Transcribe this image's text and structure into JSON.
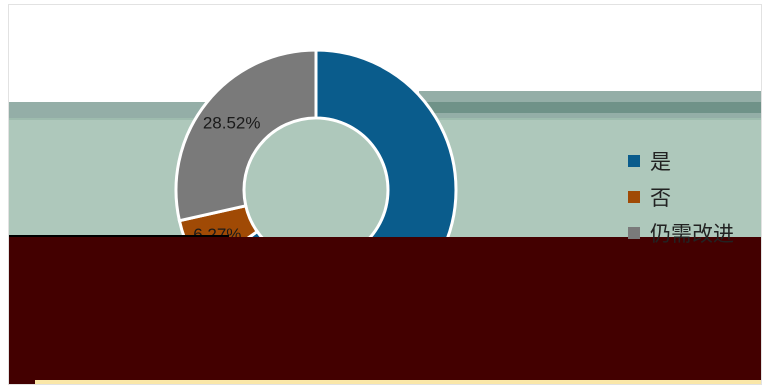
{
  "chart_data": {
    "type": "pie",
    "donut": true,
    "title": "",
    "labels": [
      "是",
      "否",
      "仍需改进"
    ],
    "values": [
      65.21,
      6.27,
      28.52
    ],
    "data_labels": [
      "",
      "6.27%",
      "28.52%"
    ],
    "colors": [
      "#0a5c8c",
      "#a04a05",
      "#7a7a7a"
    ],
    "legend_position": "right"
  }
}
